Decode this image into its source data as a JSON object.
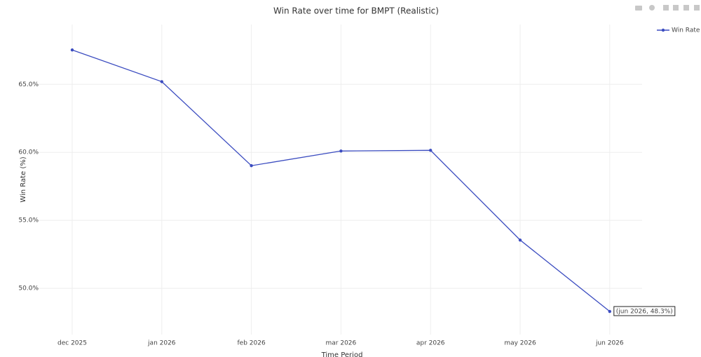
{
  "chart_data": {
    "type": "line",
    "title": "Win Rate over time for BMPT (Realistic)",
    "x_label": "Time Period",
    "y_label": "Win Rate (%)",
    "categories": [
      "dec 2025",
      "jan 2026",
      "feb 2026",
      "mar 2026",
      "apr 2026",
      "may 2026",
      "jun 2026"
    ],
    "series": [
      {
        "name": "Win Rate",
        "color": "#3b4cc0",
        "values": [
          67.53,
          65.2,
          59.02,
          60.1,
          60.15,
          53.55,
          48.3
        ]
      }
    ],
    "ylim": [
      46.6,
      69.4
    ],
    "yticks": [
      {
        "value": 50,
        "label": "50.0%"
      },
      {
        "value": 55,
        "label": "55.0%"
      },
      {
        "value": 60,
        "label": "60.0%"
      },
      {
        "value": 65,
        "label": "65.0%"
      }
    ],
    "grid": true,
    "legend": "top-right",
    "hover_label": "(jun 2026, 48.3%)"
  }
}
